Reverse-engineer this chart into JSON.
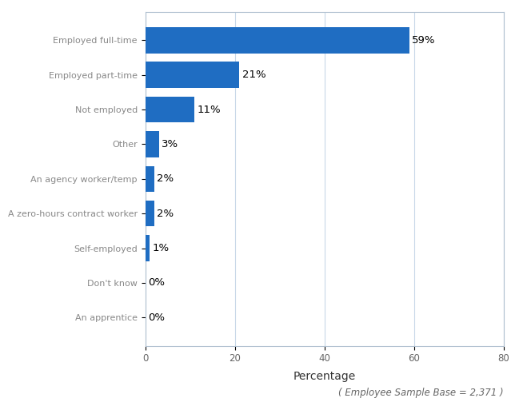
{
  "categories": [
    "An apprentice",
    "Don't know",
    "Self-employed",
    "A zero-hours contract worker",
    "An agency worker/temp",
    "Other",
    "Not employed",
    "Employed part-time",
    "Employed full-time"
  ],
  "values": [
    0,
    0,
    1,
    2,
    2,
    3,
    11,
    21,
    59
  ],
  "labels": [
    "0%",
    "0%",
    "1%",
    "2%",
    "2%",
    "3%",
    "11%",
    "21%",
    "59%"
  ],
  "bar_color": "#1F6DC2",
  "xlabel": "Percentage",
  "xlim": [
    0,
    80
  ],
  "xticks": [
    0,
    20,
    40,
    60,
    80
  ],
  "footnote": "( Employee Sample Base = 2,371 )",
  "background_color": "#ffffff",
  "grid_color": "#c8d8e8",
  "label_fontsize": 9.5,
  "tick_fontsize": 8.5,
  "ytick_fontsize": 8,
  "xlabel_fontsize": 10,
  "footnote_fontsize": 8.5,
  "bar_height": 0.75,
  "spine_color": "#b0c0d0"
}
